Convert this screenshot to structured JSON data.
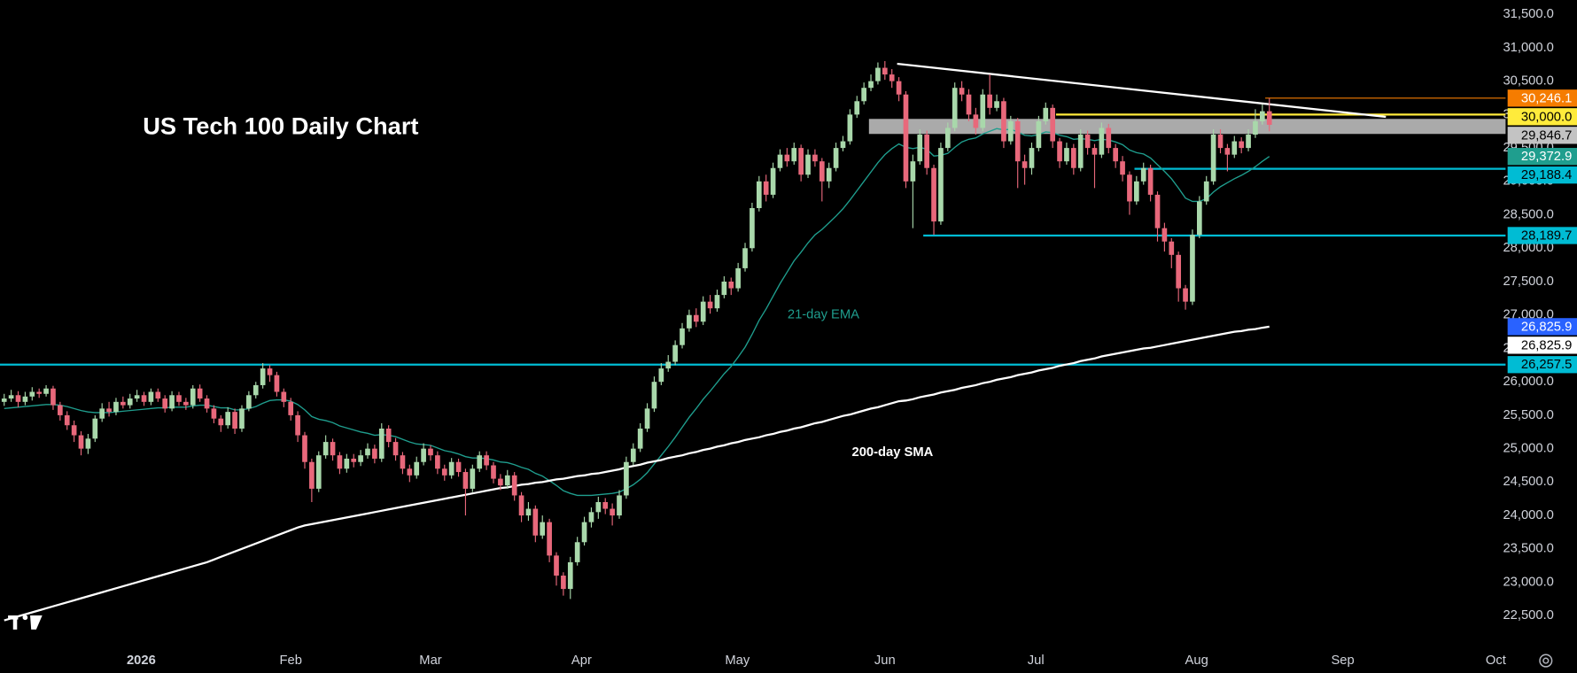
{
  "chart_data": {
    "type": "candlestick",
    "title": "US Tech 100 Daily Chart",
    "xlim": [
      -0.6,
      214.8
    ],
    "xticks": [
      {
        "value": 19.6,
        "label": "2026"
      },
      {
        "value": 41.0,
        "label": "Feb"
      },
      {
        "value": 61.0,
        "label": "Mar"
      },
      {
        "value": 82.6,
        "label": "Apr"
      },
      {
        "value": 104.9,
        "label": "May"
      },
      {
        "value": 126.0,
        "label": "Jun"
      },
      {
        "value": 147.6,
        "label": "Jul"
      },
      {
        "value": 170.6,
        "label": "Aug"
      },
      {
        "value": 191.5,
        "label": "Sep"
      },
      {
        "value": 213.4,
        "label": "Oct"
      }
    ],
    "ylim": [
      22067,
      31711
    ],
    "yticks": [
      {
        "value": 22500,
        "label": "22,500.0"
      },
      {
        "value": 23000,
        "label": "23,000.0"
      },
      {
        "value": 23500,
        "label": "23,500.0"
      },
      {
        "value": 24000,
        "label": "24,000.0"
      },
      {
        "value": 24500,
        "label": "24,500.0"
      },
      {
        "value": 25000,
        "label": "25,000.0"
      },
      {
        "value": 25500,
        "label": "25,500.0"
      },
      {
        "value": 26000,
        "label": "26,000.0"
      },
      {
        "value": 26500,
        "label": "26,500.0"
      },
      {
        "value": 27000,
        "label": "27,000.0"
      },
      {
        "value": 27500,
        "label": "27,500.0"
      },
      {
        "value": 28000,
        "label": "28,000.0"
      },
      {
        "value": 28500,
        "label": "28,500.0"
      },
      {
        "value": 29000,
        "label": "29,000.0"
      },
      {
        "value": 29500,
        "label": "29,500.0"
      },
      {
        "value": 30000,
        "label": "30,000.0"
      },
      {
        "value": 30500,
        "label": "30,500.0"
      },
      {
        "value": 31000,
        "label": "31,000.0"
      },
      {
        "value": 31500,
        "label": "31,500.0"
      }
    ],
    "up_color": "#a9d8ab",
    "down_color": "#e8687b",
    "open": [
      25700,
      25750,
      25800,
      25700,
      25780,
      25850,
      25820,
      25900,
      25650,
      25500,
      25350,
      25200,
      25000,
      25150,
      25450,
      25600,
      25550,
      25700,
      25650,
      25750,
      25800,
      25700,
      25850,
      25750,
      25600,
      25800,
      25700,
      25650,
      25900,
      25750,
      25600,
      25450,
      25350,
      25550,
      25300,
      25600,
      25800,
      25950,
      26200,
      26100,
      25850,
      25700,
      25500,
      25200,
      24800,
      24400,
      24900,
      25100,
      24900,
      24700,
      24850,
      24800,
      24900,
      25000,
      24850,
      25300,
      25100,
      24900,
      24700,
      24600,
      24800,
      25000,
      24900,
      24700,
      24600,
      24800,
      24650,
      24400,
      24700,
      24900,
      24750,
      24550,
      24450,
      24600,
      24300,
      24000,
      24100,
      23700,
      23900,
      23400,
      23100,
      22900,
      23300,
      23600,
      23900,
      24050,
      24200,
      24100,
      24000,
      24300,
      24800,
      25000,
      25300,
      25600,
      26000,
      26200,
      26300,
      26550,
      26800,
      27000,
      26900,
      27200,
      27100,
      27300,
      27500,
      27400,
      27700,
      28000,
      28600,
      29000,
      28800,
      29200,
      29400,
      29300,
      29500,
      29100,
      29400,
      29300,
      29000,
      29200,
      29500,
      29600,
      30000,
      30200,
      30400,
      30500,
      30700,
      30600,
      30500,
      30300,
      29000,
      29300,
      29700,
      29200,
      28400,
      29500,
      29800,
      30400,
      30300,
      30000,
      29800,
      30300,
      30100,
      30200,
      29600,
      29900,
      29300,
      29200,
      29500,
      29900,
      30100,
      29600,
      29300,
      29500,
      29200,
      29700,
      29500,
      29400,
      29800,
      29500,
      29300,
      29100,
      28700,
      29000,
      29200,
      28800,
      28300,
      28100,
      27900,
      27400,
      27200,
      28200,
      28700,
      29000,
      29700,
      29500,
      29400,
      29600,
      29500,
      29700,
      29900,
      30050
    ],
    "high": [
      25820,
      25880,
      25860,
      25850,
      25920,
      25900,
      25950,
      25940,
      25700,
      25560,
      25420,
      25260,
      25220,
      25500,
      25680,
      25700,
      25760,
      25780,
      25820,
      25880,
      25850,
      25900,
      25900,
      25800,
      25860,
      25850,
      25760,
      25950,
      25960,
      25800,
      25650,
      25500,
      25620,
      25600,
      25650,
      25860,
      26000,
      26280,
      26250,
      26150,
      25900,
      25760,
      25560,
      25250,
      24850,
      24960,
      25200,
      25150,
      24950,
      24920,
      24920,
      24980,
      25080,
      25060,
      25380,
      25350,
      25160,
      24950,
      24760,
      24880,
      25080,
      25050,
      24960,
      24760,
      24860,
      24850,
      24700,
      24760,
      24960,
      24960,
      24800,
      24620,
      24680,
      24650,
      24350,
      24200,
      24150,
      24000,
      23950,
      23450,
      23150,
      23380,
      23680,
      23980,
      24120,
      24280,
      24260,
      24180,
      24380,
      24880,
      25080,
      25380,
      25680,
      26080,
      26280,
      26400,
      26620,
      26880,
      27080,
      27100,
      27280,
      27300,
      27380,
      27580,
      27560,
      27780,
      28080,
      28680,
      29080,
      29100,
      29280,
      29480,
      29500,
      29580,
      29550,
      29480,
      29480,
      29350,
      29280,
      29580,
      29680,
      30080,
      30280,
      30480,
      30600,
      30780,
      30800,
      30680,
      30560,
      30350,
      29400,
      29780,
      29760,
      29250,
      29580,
      29880,
      30480,
      30500,
      30380,
      30100,
      30380,
      30600,
      30300,
      30250,
      29980,
      29950,
      29400,
      29580,
      29980,
      30180,
      30150,
      29650,
      29580,
      29560,
      29780,
      29760,
      29560,
      29880,
      29860,
      29560,
      29380,
      29150,
      29080,
      29280,
      29250,
      28850,
      28380,
      28150,
      27950,
      27450,
      28280,
      28780,
      29080,
      29780,
      29780,
      29560,
      29680,
      29660,
      29780,
      30080,
      30150,
      30246.1
    ],
    "low": [
      25640,
      25700,
      25620,
      25650,
      25720,
      25760,
      25780,
      25580,
      25420,
      25280,
      25100,
      24900,
      24920,
      25100,
      25400,
      25480,
      25500,
      25600,
      25600,
      25700,
      25640,
      25650,
      25700,
      25540,
      25560,
      25640,
      25580,
      25600,
      25700,
      25540,
      25380,
      25250,
      25300,
      25220,
      25250,
      25560,
      25750,
      25900,
      26000,
      25780,
      25620,
      25420,
      25100,
      24700,
      24200,
      24350,
      24850,
      24820,
      24620,
      24640,
      24720,
      24740,
      24850,
      24780,
      24800,
      25020,
      24820,
      24620,
      24500,
      24550,
      24750,
      24820,
      24620,
      24520,
      24550,
      24580,
      24000,
      24350,
      24650,
      24680,
      24480,
      24380,
      24400,
      24220,
      23900,
      23920,
      23600,
      23650,
      23300,
      22950,
      22800,
      22750,
      23250,
      23550,
      23820,
      23950,
      24020,
      23850,
      23950,
      24250,
      24750,
      24950,
      25250,
      25550,
      25950,
      26150,
      26250,
      26500,
      26750,
      26820,
      26850,
      27020,
      27050,
      27250,
      27300,
      27350,
      27650,
      27950,
      28550,
      28700,
      28750,
      29150,
      29220,
      29250,
      29000,
      29050,
      29220,
      28700,
      28900,
      29150,
      29450,
      29550,
      29950,
      30150,
      30350,
      30450,
      30520,
      30400,
      30200,
      28900,
      28300,
      29250,
      29100,
      28200,
      28350,
      29450,
      29750,
      30200,
      29900,
      29700,
      29750,
      30000,
      30050,
      29500,
      29550,
      28900,
      28950,
      29100,
      29450,
      29850,
      29500,
      29200,
      29250,
      29100,
      29150,
      29400,
      28900,
      29350,
      29420,
      29200,
      29000,
      28500,
      28650,
      28950,
      28700,
      28100,
      27950,
      27700,
      27200,
      27080,
      27150,
      28150,
      28650,
      28950,
      29420,
      29150,
      29350,
      29420,
      29450,
      29650,
      29850,
      29750
    ],
    "close": [
      25750,
      25800,
      25700,
      25780,
      25850,
      25820,
      25900,
      25650,
      25500,
      25350,
      25200,
      25000,
      25150,
      25450,
      25600,
      25550,
      25700,
      25650,
      25750,
      25800,
      25700,
      25850,
      25750,
      25600,
      25800,
      25700,
      25650,
      25900,
      25750,
      25600,
      25450,
      25350,
      25550,
      25300,
      25600,
      25800,
      25950,
      26200,
      26100,
      25850,
      25700,
      25500,
      25200,
      24800,
      24400,
      24900,
      25100,
      24900,
      24700,
      24850,
      24800,
      24900,
      25000,
      24850,
      25300,
      25100,
      24900,
      24700,
      24600,
      24800,
      25000,
      24900,
      24700,
      24600,
      24800,
      24650,
      24400,
      24700,
      24900,
      24750,
      24550,
      24450,
      24600,
      24300,
      24000,
      24100,
      23700,
      23900,
      23400,
      23100,
      22900,
      23300,
      23600,
      23900,
      24050,
      24200,
      24100,
      24000,
      24300,
      24800,
      25000,
      25300,
      25600,
      26000,
      26200,
      26300,
      26550,
      26800,
      27000,
      26900,
      27200,
      27100,
      27300,
      27500,
      27400,
      27700,
      28000,
      28600,
      29000,
      28800,
      29200,
      29400,
      29300,
      29500,
      29100,
      29400,
      29300,
      29000,
      29200,
      29500,
      29600,
      30000,
      30200,
      30400,
      30500,
      30700,
      30600,
      30500,
      30300,
      29000,
      29300,
      29700,
      29200,
      28400,
      29500,
      29800,
      30400,
      30300,
      30000,
      29800,
      30300,
      30100,
      30200,
      29600,
      29900,
      29300,
      29200,
      29500,
      29900,
      30100,
      29600,
      29300,
      29500,
      29200,
      29700,
      29500,
      29400,
      29800,
      29500,
      29300,
      29100,
      28700,
      29000,
      29200,
      28800,
      28300,
      28100,
      27900,
      27400,
      27200,
      28200,
      28700,
      29000,
      29700,
      29500,
      29400,
      29600,
      29500,
      29700,
      29900,
      30050,
      29846.7
    ],
    "lines": [
      {
        "name": "21-day EMA",
        "color": "#1f9e8e",
        "values": [
          25600,
          25610,
          25620,
          25630,
          25640,
          25650,
          25660,
          25660,
          25650,
          25630,
          25600,
          25570,
          25550,
          25540,
          25540,
          25540,
          25550,
          25560,
          25570,
          25580,
          25590,
          25600,
          25610,
          25610,
          25620,
          25620,
          25620,
          25640,
          25650,
          25650,
          25630,
          25610,
          25610,
          25580,
          25580,
          25600,
          25630,
          25680,
          25720,
          25730,
          25730,
          25710,
          25660,
          25580,
          25480,
          25440,
          25420,
          25390,
          25340,
          25310,
          25280,
          25250,
          25230,
          25200,
          25210,
          25200,
          25180,
          25140,
          25100,
          25070,
          25060,
          25050,
          25010,
          24970,
          24950,
          24920,
          24880,
          24860,
          24860,
          24850,
          24830,
          24800,
          24790,
          24760,
          24720,
          24690,
          24630,
          24590,
          24520,
          24450,
          24370,
          24330,
          24300,
          24300,
          24300,
          24310,
          24320,
          24330,
          24350,
          24400,
          24460,
          24540,
          24640,
          24770,
          24900,
          25030,
          25170,
          25320,
          25470,
          25600,
          25740,
          25860,
          25990,
          26120,
          26230,
          26370,
          26520,
          26710,
          26920,
          27090,
          27280,
          27470,
          27640,
          27810,
          27940,
          28080,
          28200,
          28280,
          28380,
          28480,
          28590,
          28720,
          28860,
          29000,
          29140,
          29280,
          29400,
          29490,
          29560,
          29510,
          29490,
          29510,
          29480,
          29380,
          29390,
          29420,
          29510,
          29590,
          29630,
          29650,
          29710,
          29750,
          29790,
          29770,
          29780,
          29740,
          29690,
          29680,
          29700,
          29740,
          29730,
          29690,
          29670,
          29630,
          29640,
          29630,
          29610,
          29630,
          29620,
          29590,
          29550,
          29470,
          29430,
          29410,
          29350,
          29250,
          29150,
          29040,
          28900,
          28750,
          28700,
          28700,
          28740,
          28840,
          28920,
          28980,
          29040,
          29090,
          29150,
          29220,
          29300,
          29372.9
        ]
      },
      {
        "name": "200-day SMA",
        "color": "#ffffff",
        "values": [
          22430,
          22460,
          22490,
          22520,
          22550,
          22580,
          22610,
          22640,
          22670,
          22700,
          22730,
          22760,
          22790,
          22820,
          22850,
          22880,
          22910,
          22940,
          22970,
          23000,
          23030,
          23060,
          23090,
          23120,
          23150,
          23180,
          23210,
          23240,
          23270,
          23300,
          23340,
          23380,
          23420,
          23460,
          23500,
          23540,
          23580,
          23620,
          23660,
          23700,
          23740,
          23780,
          23820,
          23850,
          23870,
          23890,
          23910,
          23930,
          23950,
          23970,
          23990,
          24010,
          24030,
          24050,
          24070,
          24090,
          24110,
          24130,
          24150,
          24170,
          24190,
          24210,
          24230,
          24250,
          24270,
          24290,
          24310,
          24330,
          24350,
          24370,
          24390,
          24410,
          24420,
          24440,
          24460,
          24470,
          24490,
          24500,
          24520,
          24540,
          24550,
          24570,
          24590,
          24600,
          24620,
          24630,
          24650,
          24670,
          24690,
          24720,
          24740,
          24760,
          24790,
          24810,
          24830,
          24860,
          24880,
          24900,
          24930,
          24950,
          24980,
          25000,
          25030,
          25050,
          25080,
          25100,
          25130,
          25150,
          25170,
          25200,
          25220,
          25250,
          25270,
          25300,
          25320,
          25350,
          25380,
          25400,
          25430,
          25460,
          25490,
          25510,
          25540,
          25570,
          25600,
          25620,
          25650,
          25680,
          25710,
          25720,
          25740,
          25770,
          25790,
          25810,
          25840,
          25860,
          25880,
          25910,
          25930,
          25950,
          25980,
          26000,
          26030,
          26050,
          26070,
          26100,
          26120,
          26140,
          26170,
          26190,
          26210,
          26240,
          26260,
          26280,
          26310,
          26330,
          26350,
          26380,
          26400,
          26420,
          26440,
          26460,
          26480,
          26500,
          26510,
          26530,
          26550,
          26570,
          26590,
          26610,
          26630,
          26650,
          26670,
          26690,
          26710,
          26730,
          26750,
          26760,
          26780,
          26790,
          26810,
          26825.9
        ]
      }
    ],
    "zone": [
      29710,
      29935
    ],
    "trendline": [
      30760,
      29965
    ],
    "levels": [
      {
        "value": 30246.1,
        "label": "30,246.1",
        "color": "#f57c00",
        "text_color": "#ffffff"
      },
      {
        "value": 30000,
        "label": "30,000.0",
        "color": "#ffeb3b",
        "text_color": "#000000"
      },
      {
        "value": 29846.7,
        "label": "29,846.7",
        "color": "#c3c3c3",
        "text_color": "#000000"
      },
      {
        "value": 29372.9,
        "label": "29,372.9",
        "color": "#1f9e8e",
        "text_color": "#ffffff"
      },
      {
        "value": 29188.4,
        "label": "29,188.4",
        "color": "#00bcd4",
        "text_color": "#000000"
      },
      {
        "value": 28189.7,
        "label": "28,189.7",
        "color": "#00bcd4",
        "text_color": "#000000"
      },
      {
        "value": 26825.9,
        "label": "26,825.9",
        "color": "#2962ff",
        "text_color": "#ffffff"
      },
      {
        "value": 26825.9,
        "label": "26,825.9",
        "color": "#ffffff",
        "text_color": "#000000"
      },
      {
        "value": 26257.5,
        "label": "26,257.5",
        "color": "#00bcd4",
        "text_color": "#000000"
      }
    ]
  }
}
